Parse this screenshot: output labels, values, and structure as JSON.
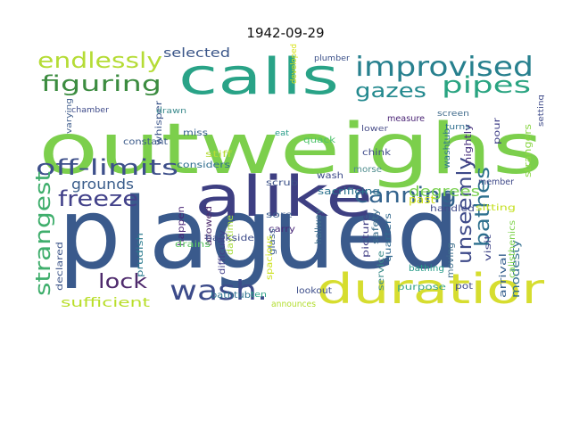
{
  "title": "1942-09-29",
  "word_cloud": {
    "colormap": "viridis",
    "words": [
      {
        "text": "outweighs",
        "color": "#7ccf4c"
      },
      {
        "text": "plagued",
        "color": "#3a5a8c"
      },
      {
        "text": "alike",
        "color": "#3e3f82"
      },
      {
        "text": "calls",
        "color": "#29a387"
      },
      {
        "text": "duration",
        "color": "#d6dd2f"
      },
      {
        "text": "improvised",
        "color": "#27808e"
      },
      {
        "text": "wash.",
        "color": "#3c4b8a"
      },
      {
        "text": "endlessly",
        "color": "#b5dc36"
      },
      {
        "text": "figuring",
        "color": "#3c8c40"
      },
      {
        "text": "gazes",
        "color": "#23898e"
      },
      {
        "text": "pipes",
        "color": "#2aa481"
      },
      {
        "text": "off-limits",
        "color": "#3d4f8a"
      },
      {
        "text": "canning",
        "color": "#33638d"
      },
      {
        "text": "freeze",
        "color": "#43428a"
      },
      {
        "text": "strangest",
        "color": "#3fae6c"
      },
      {
        "text": "unseemly",
        "color": "#3e4a89"
      },
      {
        "text": "bathes",
        "color": "#2d708e"
      },
      {
        "text": "lock",
        "color": "#4f2b6d"
      },
      {
        "text": "degrees",
        "color": "#7ad151"
      },
      {
        "text": "grounds",
        "color": "#3a5d8b"
      },
      {
        "text": "sufficient",
        "color": "#b8de29"
      },
      {
        "text": "selected",
        "color": "#3b5689"
      },
      {
        "text": "modesty",
        "color": "#2f6e8e"
      },
      {
        "text": "arrival",
        "color": "#355f8d"
      },
      {
        "text": "sacrificing",
        "color": "#2c728e"
      },
      {
        "text": "considers",
        "color": "#2e6d8e"
      },
      {
        "text": "strangers",
        "color": "#8bd646"
      },
      {
        "text": "nightly",
        "color": "#462f7c"
      },
      {
        "text": "sitting",
        "color": "#c5e021"
      },
      {
        "text": "quarters",
        "color": "#31688e"
      },
      {
        "text": "picture",
        "color": "#423f85"
      },
      {
        "text": "safety",
        "color": "#3d6f8d"
      },
      {
        "text": "service",
        "color": "#3c8c8a"
      },
      {
        "text": "purpose",
        "color": "#3ba68a"
      },
      {
        "text": "prudish",
        "color": "#2b7b8e"
      },
      {
        "text": "handled",
        "color": "#3f4a8a"
      },
      {
        "text": "moving",
        "color": "#3f6f8c"
      },
      {
        "text": "bathing",
        "color": "#2a9d8a"
      },
      {
        "text": "calisthenics",
        "color": "#7fd34e"
      },
      {
        "text": "visit",
        "color": "#404689"
      },
      {
        "text": "pour",
        "color": "#404088"
      },
      {
        "text": "whisper",
        "color": "#3b5489"
      },
      {
        "text": "stiff",
        "color": "#b5dc36"
      },
      {
        "text": "miss",
        "color": "#35608d"
      },
      {
        "text": "scrub",
        "color": "#3c5188"
      },
      {
        "text": "sore",
        "color": "#3a5a8c"
      },
      {
        "text": "carry",
        "color": "#482878"
      },
      {
        "text": "allowed",
        "color": "#4e2b6e"
      },
      {
        "text": "happen",
        "color": "#482475"
      },
      {
        "text": "difficulty",
        "color": "#433f8a"
      },
      {
        "text": "daytime",
        "color": "#a6db3a"
      },
      {
        "text": "backside",
        "color": "#3e4c8a"
      },
      {
        "text": "bathtub",
        "color": "#2b718e"
      },
      {
        "text": "glass",
        "color": "#3b5c8c"
      },
      {
        "text": "spacious",
        "color": "#cde11d"
      },
      {
        "text": "lookout",
        "color": "#3d4e8a"
      },
      {
        "text": "drains",
        "color": "#5cc863"
      },
      {
        "text": "declared",
        "color": "#3d5589"
      },
      {
        "text": "announces",
        "color": "#b2dd2d"
      },
      {
        "text": "ten",
        "color": "#2ba286"
      },
      {
        "text": "pot",
        "color": "#3e4a89"
      },
      {
        "text": "hallway",
        "color": "#3f6f8c"
      },
      {
        "text": "past",
        "color": "#d2e21b"
      },
      {
        "text": "member",
        "color": "#3e4888"
      },
      {
        "text": "chink",
        "color": "#3e4a89"
      },
      {
        "text": "quack",
        "color": "#4ec36b"
      },
      {
        "text": "wash",
        "color": "#3c4a89"
      },
      {
        "text": "morse",
        "color": "#4e8c8d"
      },
      {
        "text": "lower",
        "color": "#4a4f8a"
      },
      {
        "text": "screen",
        "color": "#3f6a8b"
      },
      {
        "text": "washtub",
        "color": "#2b748e"
      },
      {
        "text": "measure",
        "color": "#482173"
      },
      {
        "text": "turns",
        "color": "#2e6e8e"
      },
      {
        "text": "setting",
        "color": "#3e4a89"
      },
      {
        "text": "comfortable",
        "color": "#c9e120"
      },
      {
        "text": "constant",
        "color": "#3b5a8a"
      },
      {
        "text": "varying",
        "color": "#3c5a8a"
      },
      {
        "text": "chamber",
        "color": "#3e4a89"
      },
      {
        "text": "plumber",
        "color": "#3c5189"
      },
      {
        "text": "drawn",
        "color": "#3a8a8c"
      },
      {
        "text": "developed",
        "color": "#d8e219"
      },
      {
        "text": "eat",
        "color": "#2a9d8a"
      }
    ]
  }
}
